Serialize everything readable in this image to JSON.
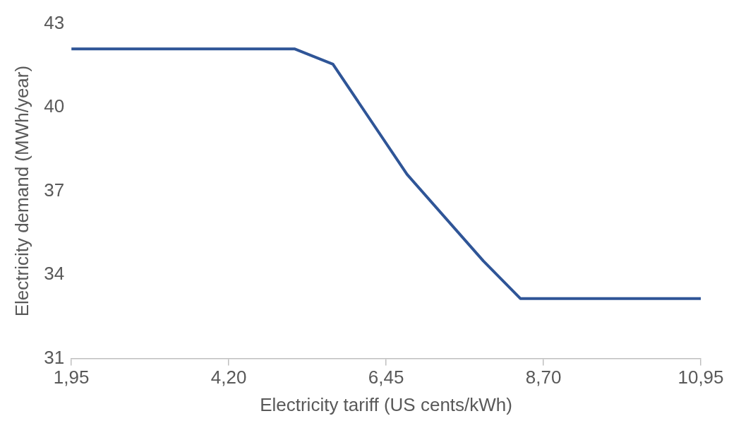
{
  "chart_data": {
    "type": "line",
    "xlabel": "Electricity tariff (US cents/kWh)",
    "ylabel": "Electricity demand (MWh/year)",
    "x": [
      1.95,
      5.14,
      5.69,
      6.75,
      7.84,
      8.37,
      10.95
    ],
    "series": [
      {
        "color": "#2f5597",
        "values": [
          42.1,
          42.1,
          41.55,
          37.6,
          34.5,
          33.15,
          33.15
        ]
      }
    ],
    "xlim": [
      1.95,
      10.95
    ],
    "ylim": [
      31,
      43
    ],
    "xticks": [
      {
        "value": 1.95,
        "label": "1,95"
      },
      {
        "value": 4.2,
        "label": "4,20"
      },
      {
        "value": 6.45,
        "label": "6,45"
      },
      {
        "value": 8.7,
        "label": "8,70"
      },
      {
        "value": 10.95,
        "label": "10,95"
      }
    ],
    "yticks": [
      31,
      34,
      37,
      40,
      43
    ],
    "grid": false,
    "legend": false,
    "marker": "none",
    "line_style": "solid"
  }
}
